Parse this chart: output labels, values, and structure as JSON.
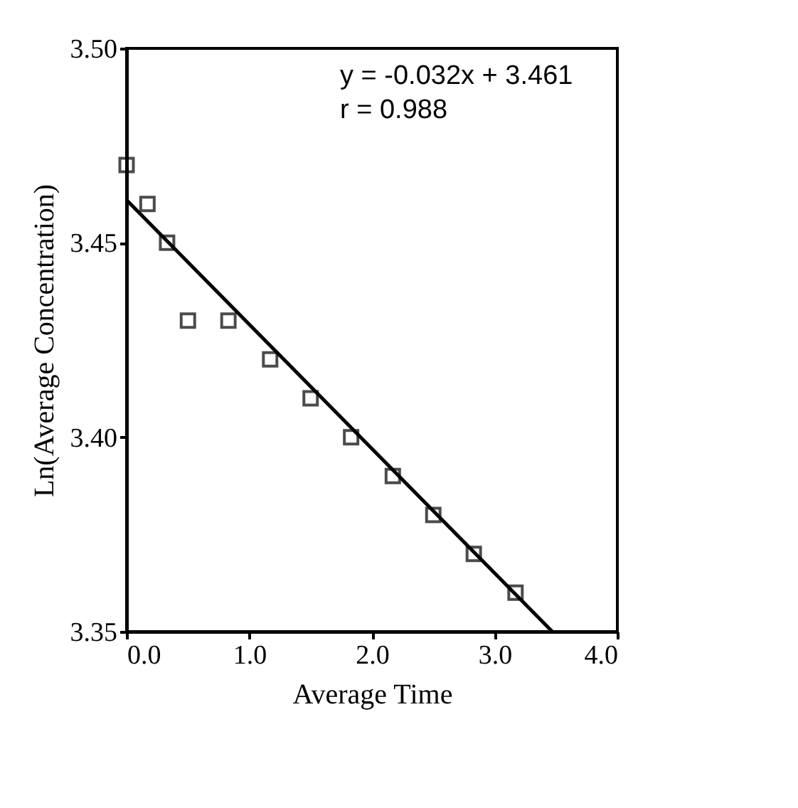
{
  "chart_data": {
    "type": "scatter",
    "xlabel": "Average Time",
    "ylabel": "Ln(Average Concentration)",
    "xlim": [
      0,
      4
    ],
    "xticks": [
      {
        "value": 0,
        "label": "0.0"
      },
      {
        "value": 1,
        "label": "1.0"
      },
      {
        "value": 2,
        "label": "2.0"
      },
      {
        "value": 3,
        "label": "3.0"
      },
      {
        "value": 4,
        "label": "4.0"
      }
    ],
    "ylim": [
      3.35,
      3.5
    ],
    "yticks": [
      {
        "value": 3.35,
        "label": "3.35"
      },
      {
        "value": 3.4,
        "label": "3.40"
      },
      {
        "value": 3.45,
        "label": "3.45"
      },
      {
        "value": 3.5,
        "label": "3.50"
      }
    ],
    "grid": false,
    "series": [
      {
        "marker": "square",
        "color": "#000000",
        "x": [
          0,
          0.17,
          0.33,
          0.5,
          0.83,
          1.17,
          1.5,
          1.83,
          2.17,
          2.5,
          2.83,
          3.17
        ],
        "values": [
          3.47,
          3.46,
          3.45,
          3.43,
          3.43,
          3.42,
          3.41,
          3.4,
          3.39,
          3.38,
          3.37,
          3.36
        ]
      },
      {
        "type": "line",
        "color": "#000000",
        "x": [
          0,
          3.47
        ],
        "values": [
          3.461,
          3.35
        ]
      }
    ],
    "annotations": [
      "y =  -0.032x + 3.461",
      "r = 0.988"
    ]
  }
}
